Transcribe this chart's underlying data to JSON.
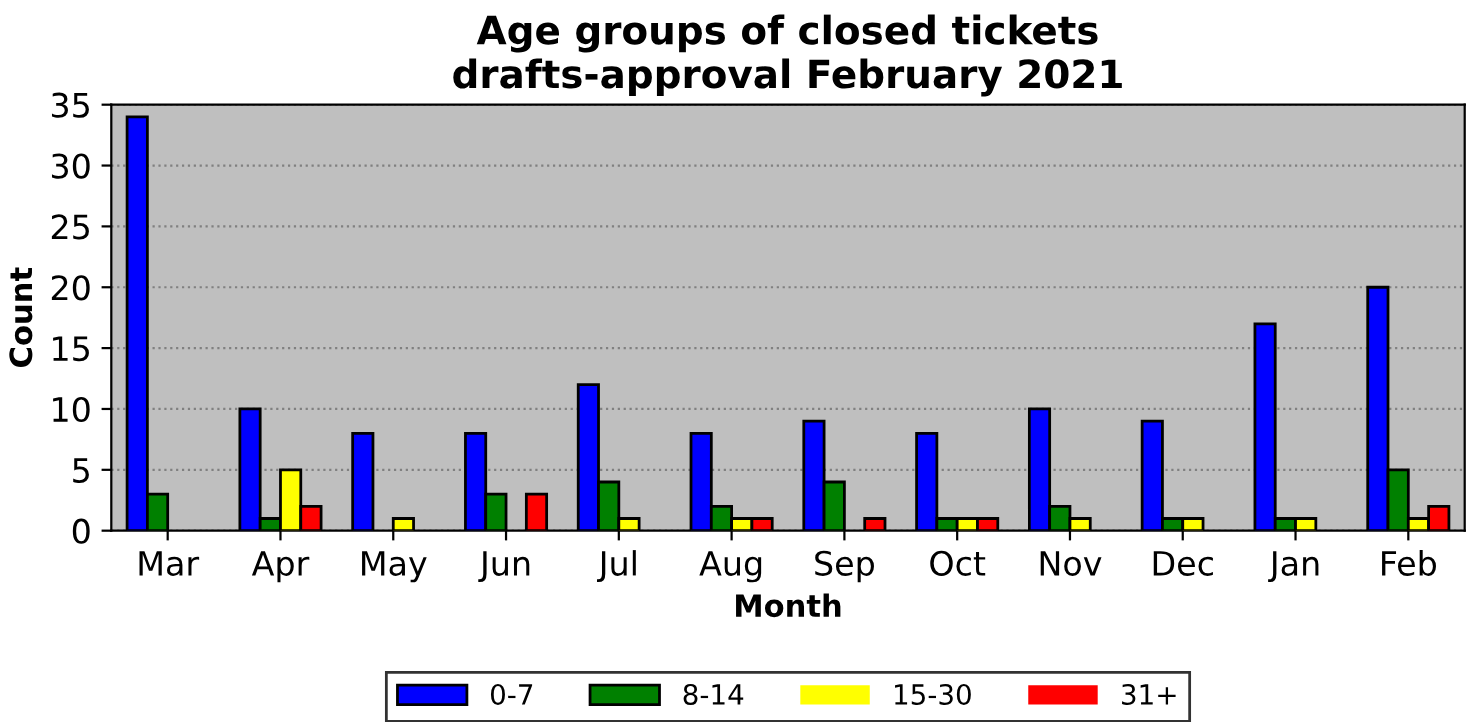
{
  "chart_data": {
    "type": "bar",
    "title": "Age groups of closed tickets\ndrafts-approval February 2021",
    "xlabel": "Month",
    "ylabel": "Count",
    "categories": [
      "Mar",
      "Apr",
      "May",
      "Jun",
      "Jul",
      "Aug",
      "Sep",
      "Oct",
      "Nov",
      "Dec",
      "Jan",
      "Feb"
    ],
    "series": [
      {
        "name": "0-7",
        "color": "#0000ff",
        "values": [
          34,
          10,
          8,
          8,
          12,
          8,
          9,
          8,
          10,
          9,
          17,
          20
        ]
      },
      {
        "name": "8-14",
        "color": "#008000",
        "values": [
          3,
          1,
          0,
          3,
          4,
          2,
          4,
          1,
          2,
          1,
          1,
          5
        ]
      },
      {
        "name": "15-30",
        "color": "#ffff00",
        "values": [
          0,
          5,
          1,
          0,
          1,
          1,
          0,
          1,
          1,
          1,
          1,
          1
        ]
      },
      {
        "name": "31+",
        "color": "#ff0000",
        "values": [
          0,
          2,
          0,
          3,
          0,
          1,
          1,
          1,
          0,
          0,
          0,
          2
        ]
      }
    ],
    "ylim": [
      0,
      35
    ],
    "yticks": [
      0,
      5,
      10,
      15,
      20,
      25,
      30,
      35
    ],
    "grid": "y",
    "legend": "bottom"
  }
}
